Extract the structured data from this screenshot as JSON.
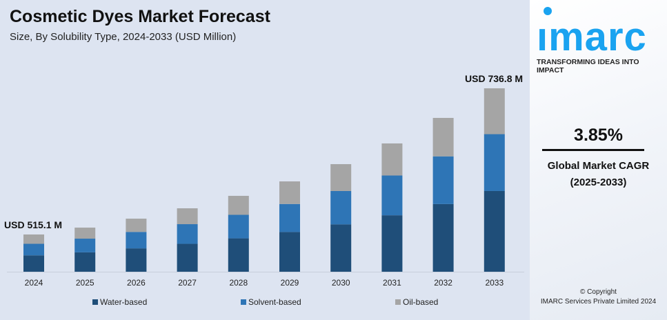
{
  "header": {
    "title": "Cosmetic Dyes Market Forecast",
    "subtitle": "Size, By Solubility Type, 2024-2033 (USD Million)"
  },
  "chart_data": {
    "type": "bar",
    "stacked": true,
    "title": "Cosmetic Dyes Market Forecast",
    "subtitle": "Size, By Solubility Type, 2024-2033 (USD Million)",
    "categories": [
      "2024",
      "2025",
      "2026",
      "2027",
      "2028",
      "2029",
      "2030",
      "2031",
      "2032",
      "2033"
    ],
    "totals": [
      515.1,
      525.5,
      539.1,
      554.8,
      573.7,
      595.6,
      621.8,
      653.2,
      691.9,
      736.8
    ],
    "series": [
      {
        "name": "Water-based",
        "color": "#1f4e79",
        "values": [
          226.6,
          231.2,
          237.2,
          244.1,
          252.4,
          262.1,
          273.6,
          287.4,
          304.4,
          324.2
        ]
      },
      {
        "name": "Solvent-based",
        "color": "#2e75b6",
        "values": [
          159.7,
          162.9,
          167.1,
          172.0,
          177.8,
          184.6,
          192.8,
          202.5,
          214.5,
          228.4
        ]
      },
      {
        "name": "Oil-based",
        "color": "#a5a5a5",
        "values": [
          128.8,
          131.4,
          134.8,
          138.7,
          143.5,
          148.9,
          155.4,
          163.3,
          173.0,
          184.2
        ]
      }
    ],
    "annotations": [
      "USD 515.1 M",
      "USD 736.8 M"
    ],
    "legend": "bottom",
    "grid": false,
    "yaxis_visible": false
  },
  "panel": {
    "logo": "imarc",
    "tagline": "TRANSFORMING IDEAS INTO IMPACT",
    "cagr_value": "3.85%",
    "cagr_label": "Global Market CAGR",
    "cagr_period": "(2025-2033)",
    "copyright": "© Copyright",
    "company": "IMARC Services Private Limited 2024"
  }
}
